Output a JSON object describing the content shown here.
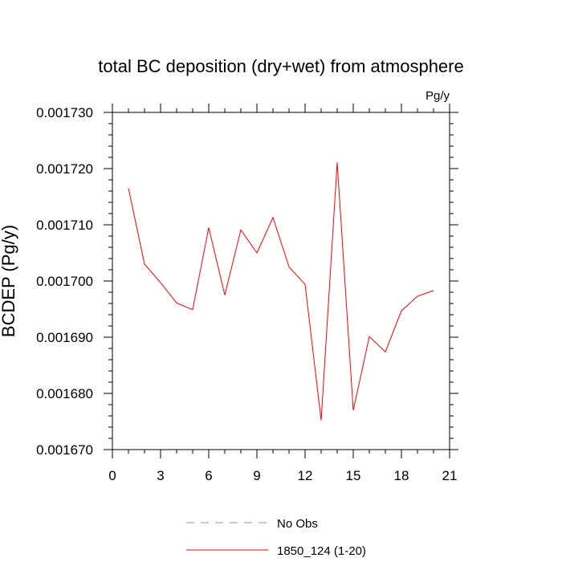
{
  "chart_data": {
    "type": "line",
    "title": "total BC deposition (dry+wet) from atmosphere",
    "units": "Pg/y",
    "ylabel": "BCDEP  (Pg/y)",
    "xlabel": "",
    "xlim": [
      0,
      21
    ],
    "ylim": [
      0.00167,
      0.00173
    ],
    "x_ticks": [
      0,
      3,
      6,
      9,
      12,
      15,
      18,
      21
    ],
    "x_tick_labels": [
      "0",
      "3",
      "6",
      "9",
      "12",
      "15",
      "18",
      "21"
    ],
    "y_ticks": [
      0.00167,
      0.00168,
      0.00169,
      0.0017,
      0.00171,
      0.00172,
      0.00173
    ],
    "y_tick_labels": [
      "0.001670",
      "0.001680",
      "0.001690",
      "0.001700",
      "0.001710",
      "0.001720",
      "0.001730"
    ],
    "grid": false,
    "legend_position": "bottom",
    "series": [
      {
        "name": "1850_124 (1-20)",
        "color": "#ff0000",
        "dash": "solid",
        "x": [
          1,
          2,
          3,
          4,
          5,
          6,
          7,
          8,
          9,
          10,
          11,
          12,
          13,
          14,
          15,
          16,
          17,
          18,
          19,
          20
        ],
        "values": [
          0.0017165,
          0.001703,
          0.0016997,
          0.0016961,
          0.0016949,
          0.0017095,
          0.0016975,
          0.0017091,
          0.001705,
          0.0017113,
          0.0017025,
          0.0016994,
          0.0016752,
          0.0017211,
          0.001677,
          0.0016901,
          0.0016874,
          0.0016947,
          0.0016973,
          0.0016983
        ]
      },
      {
        "name": "No Obs",
        "color": "#8888ff",
        "dash": "dashed",
        "x": [],
        "values": []
      }
    ]
  }
}
